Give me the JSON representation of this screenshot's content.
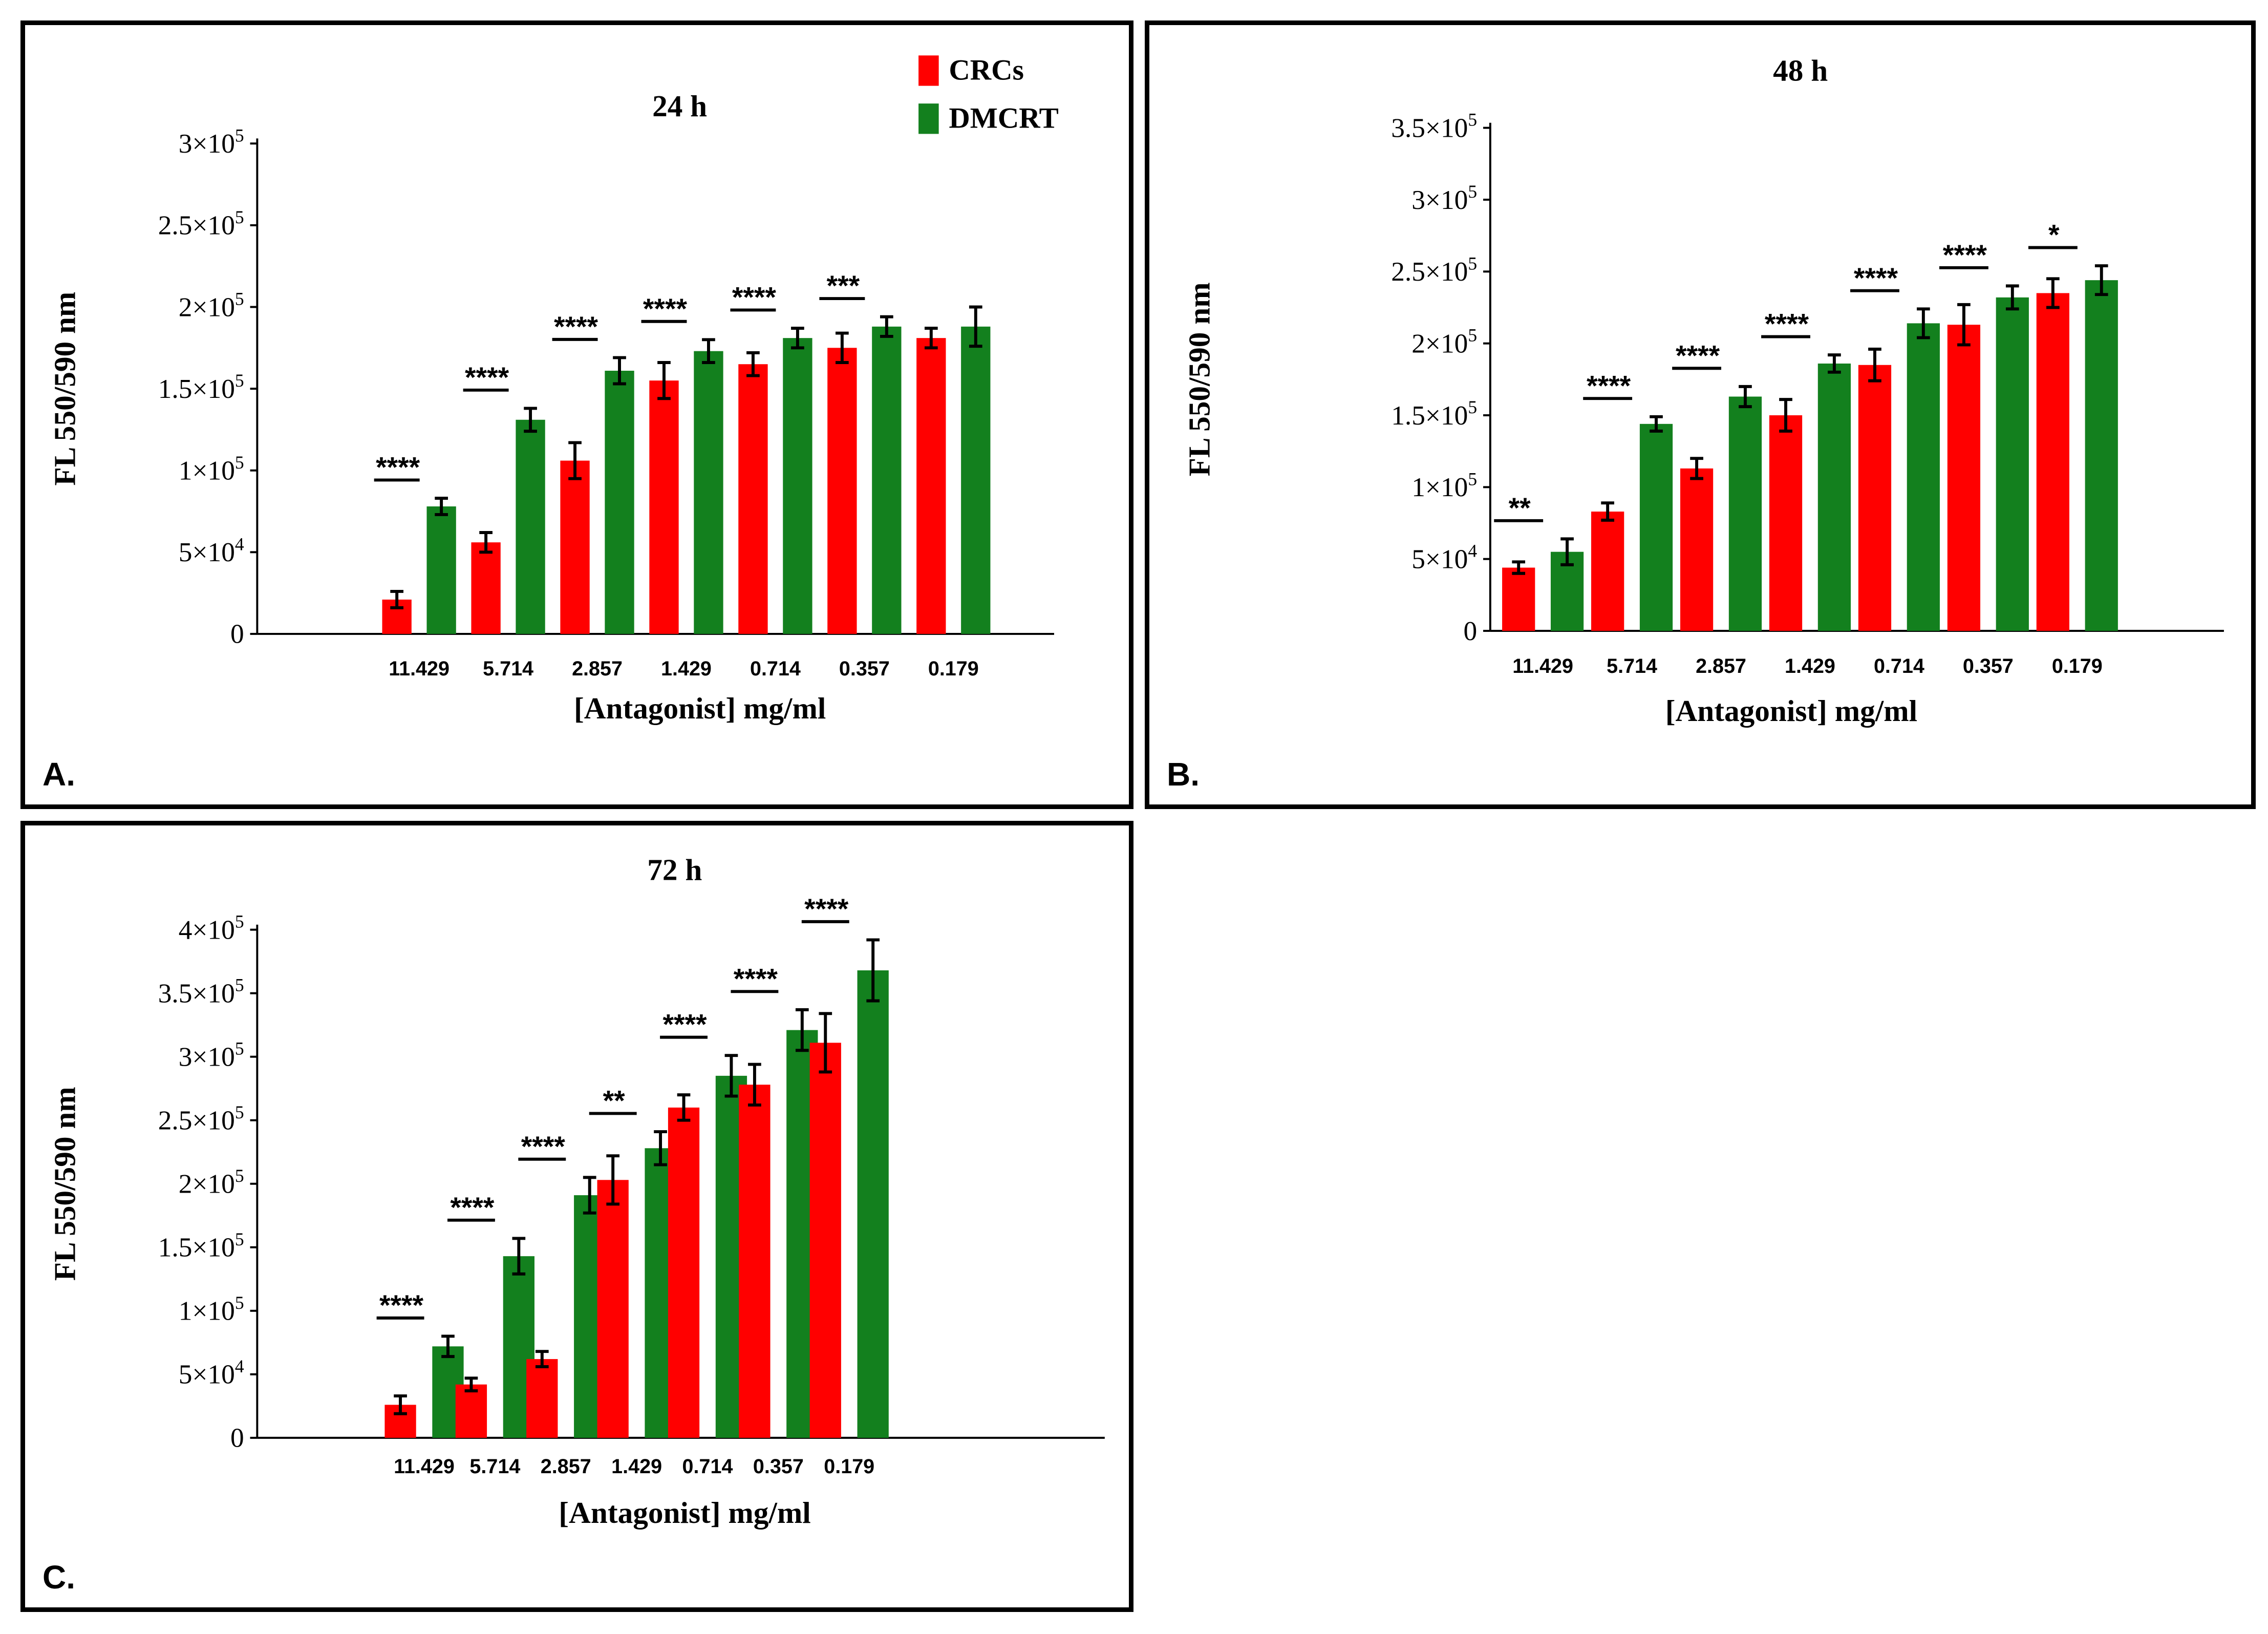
{
  "legend": [
    {
      "label": "CRCs",
      "color": "#ff0000"
    },
    {
      "label": "DMCRT",
      "color": "#13801e"
    }
  ],
  "chart_data": [
    {
      "panel": "A.",
      "type": "bar",
      "title": "24 h",
      "xlabel": "[Antagonist] mg/ml",
      "ylabel": "FL 550/590 nm",
      "categories": [
        "11.429",
        "5.714",
        "2.857",
        "1.429",
        "0.714",
        "0.357",
        "0.179"
      ],
      "ylim": [
        0,
        300000
      ],
      "yticks": [
        0,
        50000,
        100000,
        150000,
        200000,
        250000,
        300000
      ],
      "ytick_labels": [
        {
          "mant": "0",
          "exp": ""
        },
        {
          "mant": "5×10",
          "exp": "4"
        },
        {
          "mant": "1×10",
          "exp": "5"
        },
        {
          "mant": "1.5×10",
          "exp": "5"
        },
        {
          "mant": "2×10",
          "exp": "5"
        },
        {
          "mant": "2.5×10",
          "exp": "5"
        },
        {
          "mant": "3×10",
          "exp": "5"
        }
      ],
      "series": [
        {
          "name": "CRCs",
          "color": "#ff0000",
          "values": [
            21000,
            56000,
            106000,
            155000,
            165000,
            175000,
            181000
          ],
          "errors": [
            5000,
            6000,
            11000,
            11000,
            7000,
            9000,
            6000
          ]
        },
        {
          "name": "DMCRT",
          "color": "#13801e",
          "values": [
            78000,
            131000,
            161000,
            173000,
            181000,
            188000,
            188000
          ],
          "errors": [
            5000,
            7000,
            8000,
            7000,
            6000,
            6000,
            12000
          ]
        }
      ],
      "significance": [
        {
          "index": 0,
          "label": "****"
        },
        {
          "index": 1,
          "label": "****"
        },
        {
          "index": 2,
          "label": "****"
        },
        {
          "index": 3,
          "label": "****"
        },
        {
          "index": 4,
          "label": "****"
        },
        {
          "index": 5,
          "label": "***"
        }
      ]
    },
    {
      "panel": "B.",
      "type": "bar",
      "title": "48 h",
      "xlabel": "[Antagonist] mg/ml",
      "ylabel": "FL 550/590 nm",
      "categories": [
        "11.429",
        "5.714",
        "2.857",
        "1.429",
        "0.714",
        "0.357",
        "0.179"
      ],
      "ylim": [
        0,
        350000
      ],
      "yticks": [
        0,
        50000,
        100000,
        150000,
        200000,
        250000,
        300000,
        350000
      ],
      "ytick_labels": [
        {
          "mant": "0",
          "exp": ""
        },
        {
          "mant": "5×10",
          "exp": "4"
        },
        {
          "mant": "1×10",
          "exp": "5"
        },
        {
          "mant": "1.5×10",
          "exp": "5"
        },
        {
          "mant": "2×10",
          "exp": "5"
        },
        {
          "mant": "2.5×10",
          "exp": "5"
        },
        {
          "mant": "3×10",
          "exp": "5"
        },
        {
          "mant": "3.5×10",
          "exp": "5"
        }
      ],
      "series": [
        {
          "name": "CRCs",
          "color": "#ff0000",
          "values": [
            44000,
            83000,
            113000,
            150000,
            185000,
            213000,
            235000
          ],
          "errors": [
            4000,
            6000,
            7000,
            11000,
            11000,
            14000,
            10000
          ]
        },
        {
          "name": "DMCRT",
          "color": "#13801e",
          "values": [
            55000,
            144000,
            163000,
            186000,
            214000,
            232000,
            244000
          ],
          "errors": [
            9000,
            5000,
            7000,
            6000,
            10000,
            8000,
            10000
          ]
        }
      ],
      "significance": [
        {
          "index": 0,
          "label": "**"
        },
        {
          "index": 1,
          "label": "****"
        },
        {
          "index": 2,
          "label": "****"
        },
        {
          "index": 3,
          "label": "****"
        },
        {
          "index": 4,
          "label": "****"
        },
        {
          "index": 5,
          "label": "****"
        },
        {
          "index": 6,
          "label": "*"
        }
      ]
    },
    {
      "panel": "C.",
      "type": "bar",
      "title": "72 h",
      "xlabel": "[Antagonist] mg/ml",
      "ylabel": "FL 550/590 nm",
      "categories": [
        "11.429",
        "5.714",
        "2.857",
        "1.429",
        "0.714",
        "0.357",
        "0.179"
      ],
      "ylim": [
        0,
        400000
      ],
      "yticks": [
        0,
        50000,
        100000,
        150000,
        200000,
        250000,
        300000,
        350000,
        400000
      ],
      "ytick_labels": [
        {
          "mant": "0",
          "exp": ""
        },
        {
          "mant": "5×10",
          "exp": "4"
        },
        {
          "mant": "1×10",
          "exp": "5"
        },
        {
          "mant": "1.5×10",
          "exp": "5"
        },
        {
          "mant": "2×10",
          "exp": "5"
        },
        {
          "mant": "2.5×10",
          "exp": "5"
        },
        {
          "mant": "3×10",
          "exp": "5"
        },
        {
          "mant": "3.5×10",
          "exp": "5"
        },
        {
          "mant": "4×10",
          "exp": "5"
        }
      ],
      "series": [
        {
          "name": "CRCs",
          "color": "#ff0000",
          "values": [
            26000,
            42000,
            62000,
            203000,
            260000,
            278000,
            311000
          ],
          "errors": [
            7000,
            5000,
            6000,
            19000,
            10000,
            16000,
            23000
          ]
        },
        {
          "name": "DMCRT",
          "color": "#13801e",
          "values": [
            72000,
            143000,
            191000,
            228000,
            285000,
            321000,
            368000
          ],
          "errors": [
            8000,
            14000,
            14000,
            13000,
            16000,
            16000,
            24000
          ]
        }
      ],
      "significance": [
        {
          "index": 0,
          "label": "****"
        },
        {
          "index": 1,
          "label": "****"
        },
        {
          "index": 2,
          "label": "****"
        },
        {
          "index": 3,
          "label": "**"
        },
        {
          "index": 4,
          "label": "****"
        },
        {
          "index": 5,
          "label": "****"
        },
        {
          "index": 6,
          "label": "****"
        }
      ]
    }
  ]
}
